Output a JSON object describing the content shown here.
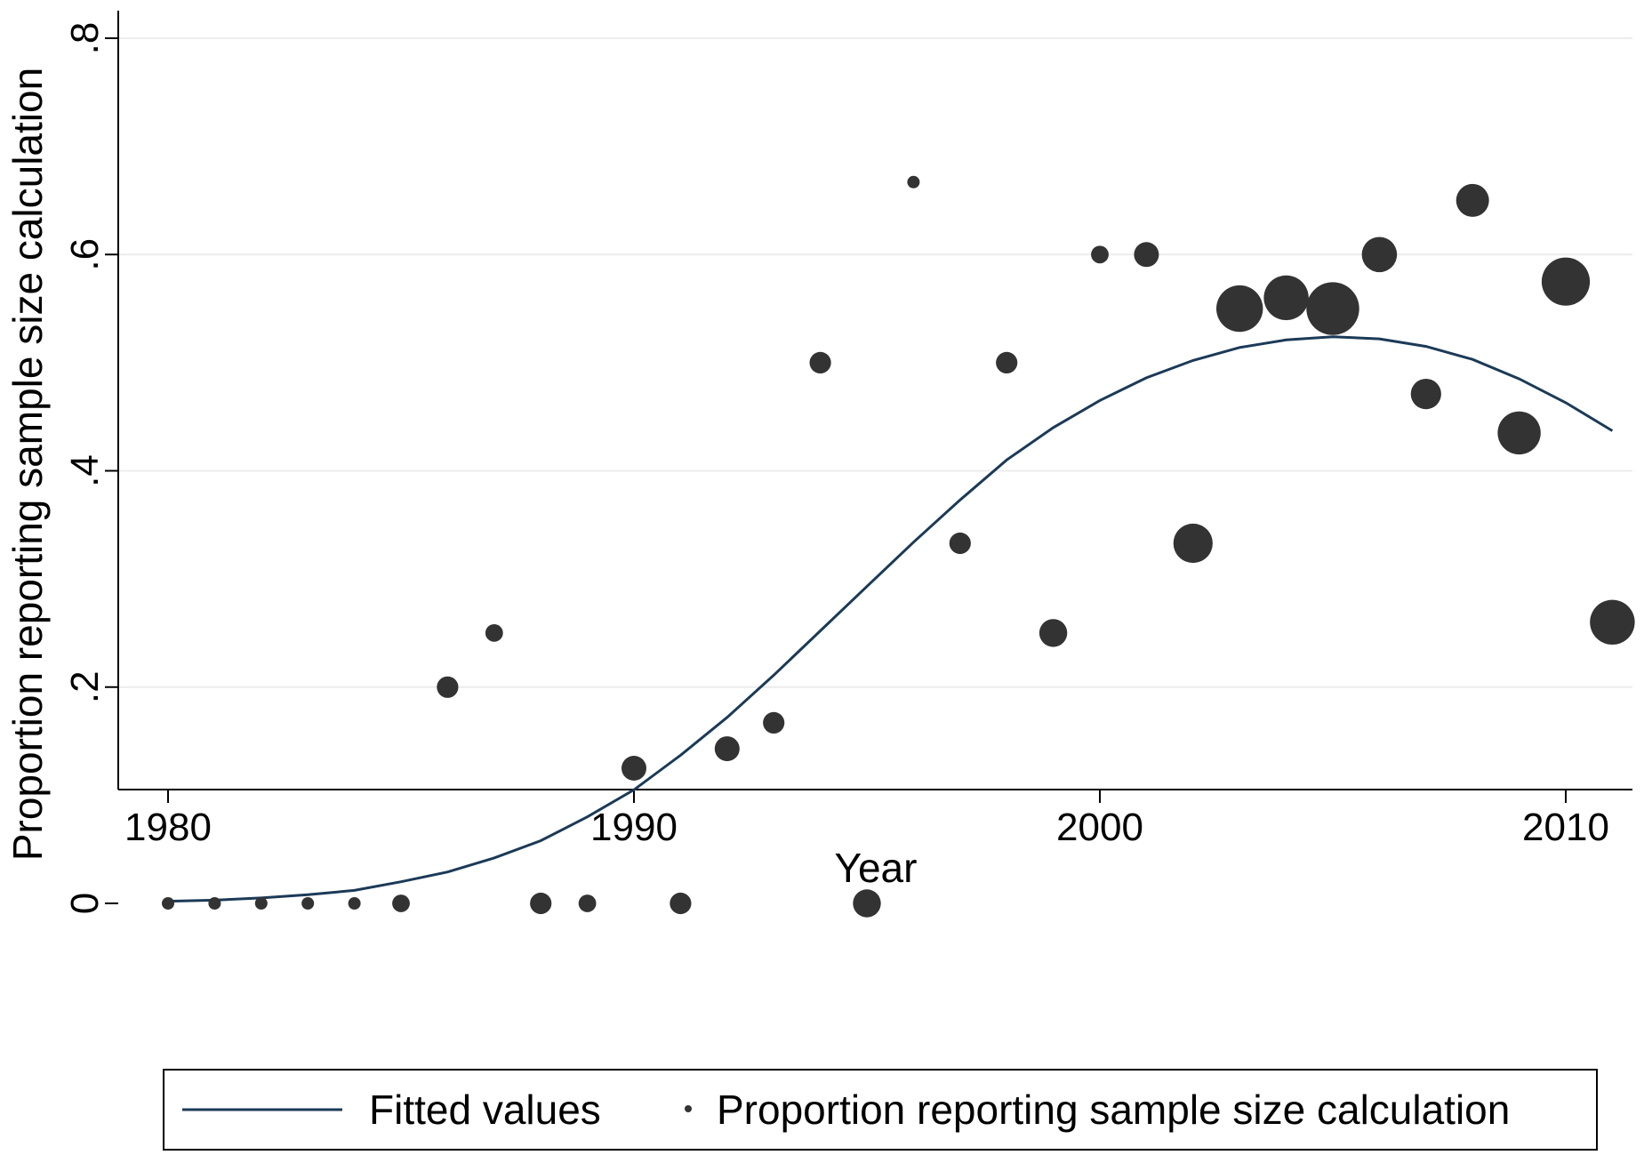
{
  "chart_data": {
    "type": "scatter",
    "title": "",
    "xlabel": "Year",
    "ylabel": "Proportion reporting sample size calculation",
    "xlim": [
      1980,
      2011
    ],
    "ylim": [
      0,
      0.8
    ],
    "xticks": [
      1980,
      1990,
      2000,
      2010
    ],
    "xtick_labels": [
      "1980",
      "1990",
      "2000",
      "2010"
    ],
    "yticks": [
      0,
      0.2,
      0.4,
      0.6,
      0.8
    ],
    "ytick_labels": [
      "0",
      ".2",
      ".4",
      ".6",
      ".8"
    ],
    "grid": true,
    "legend_position": "bottom",
    "marker_color": "#333333",
    "line_color": "#1b3a57",
    "series": [
      {
        "name": "Proportion reporting sample size calculation",
        "type": "scatter",
        "points": [
          {
            "x": 1980,
            "y": 0,
            "weight": 1
          },
          {
            "x": 1981,
            "y": 0,
            "weight": 1
          },
          {
            "x": 1982,
            "y": 0,
            "weight": 1
          },
          {
            "x": 1983,
            "y": 0,
            "weight": 1
          },
          {
            "x": 1984,
            "y": 0,
            "weight": 1
          },
          {
            "x": 1985,
            "y": 0,
            "weight": 2
          },
          {
            "x": 1986,
            "y": 0.2,
            "weight": 3
          },
          {
            "x": 1987,
            "y": 0.25,
            "weight": 2
          },
          {
            "x": 1988,
            "y": 0,
            "weight": 3
          },
          {
            "x": 1989,
            "y": 0,
            "weight": 2
          },
          {
            "x": 1990,
            "y": 0.125,
            "weight": 4
          },
          {
            "x": 1991,
            "y": 0,
            "weight": 3
          },
          {
            "x": 1992,
            "y": 0.143,
            "weight": 4
          },
          {
            "x": 1993,
            "y": 0.167,
            "weight": 3
          },
          {
            "x": 1994,
            "y": 0.5,
            "weight": 3
          },
          {
            "x": 1995,
            "y": 0,
            "weight": 5
          },
          {
            "x": 1996,
            "y": 0.667,
            "weight": 1
          },
          {
            "x": 1997,
            "y": 0.333,
            "weight": 3
          },
          {
            "x": 1998,
            "y": 0.5,
            "weight": 3
          },
          {
            "x": 1999,
            "y": 0.25,
            "weight": 5
          },
          {
            "x": 2000,
            "y": 0.6,
            "weight": 2
          },
          {
            "x": 2001,
            "y": 0.6,
            "weight": 4
          },
          {
            "x": 2002,
            "y": 0.333,
            "weight": 10
          },
          {
            "x": 2003,
            "y": 0.55,
            "weight": 14
          },
          {
            "x": 2004,
            "y": 0.56,
            "weight": 13
          },
          {
            "x": 2005,
            "y": 0.55,
            "weight": 18
          },
          {
            "x": 2006,
            "y": 0.6,
            "weight": 8
          },
          {
            "x": 2007,
            "y": 0.471,
            "weight": 6
          },
          {
            "x": 2008,
            "y": 0.65,
            "weight": 7
          },
          {
            "x": 2009,
            "y": 0.435,
            "weight": 12
          },
          {
            "x": 2010,
            "y": 0.575,
            "weight": 15
          },
          {
            "x": 2011,
            "y": 0.26,
            "weight": 13
          }
        ]
      },
      {
        "name": "Fitted values",
        "type": "line",
        "x": [
          1980,
          1981,
          1982,
          1983,
          1984,
          1985,
          1986,
          1987,
          1988,
          1989,
          1990,
          1991,
          1992,
          1993,
          1994,
          1995,
          1996,
          1997,
          1998,
          1999,
          2000,
          2001,
          2002,
          2003,
          2004,
          2005,
          2006,
          2007,
          2008,
          2009,
          2010,
          2011
        ],
        "y": [
          0.002,
          0.003,
          0.005,
          0.008,
          0.012,
          0.02,
          0.029,
          0.042,
          0.058,
          0.08,
          0.105,
          0.137,
          0.172,
          0.211,
          0.252,
          0.293,
          0.334,
          0.373,
          0.41,
          0.44,
          0.465,
          0.486,
          0.502,
          0.514,
          0.521,
          0.524,
          0.522,
          0.515,
          0.503,
          0.485,
          0.463,
          0.437
        ]
      }
    ],
    "legend": [
      {
        "label": "Fitted values",
        "symbol": "line"
      },
      {
        "label": "Proportion reporting sample size calculation",
        "symbol": "dot"
      }
    ]
  }
}
